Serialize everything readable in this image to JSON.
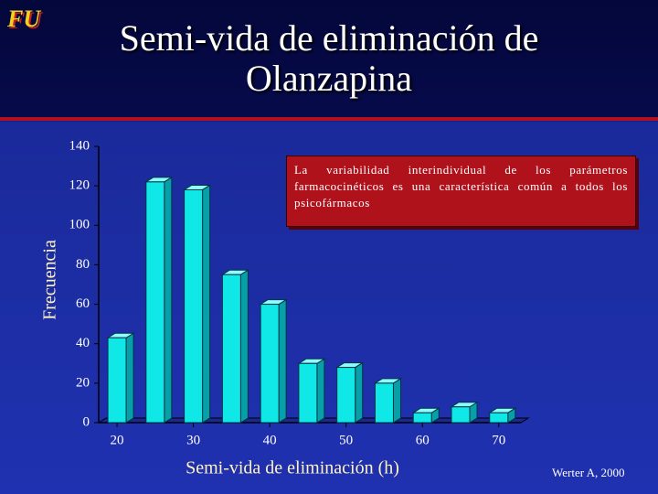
{
  "logo": "FU",
  "chart_data": {
    "type": "bar",
    "title": "Semi-vida de eliminación de Olanzapina",
    "x_label": "Semi-vida de eliminación (h)",
    "y_label": "Frecuencia",
    "annotation": "La variabilidad interindividual de los parámetros farmacocinéticos es una característica común a todos los psicofármacos",
    "source": "Werter A, 2000",
    "x": [
      20,
      25,
      30,
      35,
      40,
      45,
      50,
      55,
      60,
      65,
      70
    ],
    "values": [
      43,
      122,
      118,
      75,
      60,
      30,
      28,
      20,
      5,
      8,
      5
    ],
    "color": "#10e8e8",
    "xlim": [
      17.6,
      72.9
    ],
    "xticks": [
      20,
      30,
      40,
      50,
      60,
      70
    ],
    "ylim": [
      0,
      140
    ],
    "yticks": [
      0,
      20,
      40,
      60,
      80,
      100,
      120,
      140
    ],
    "grid": false
  }
}
